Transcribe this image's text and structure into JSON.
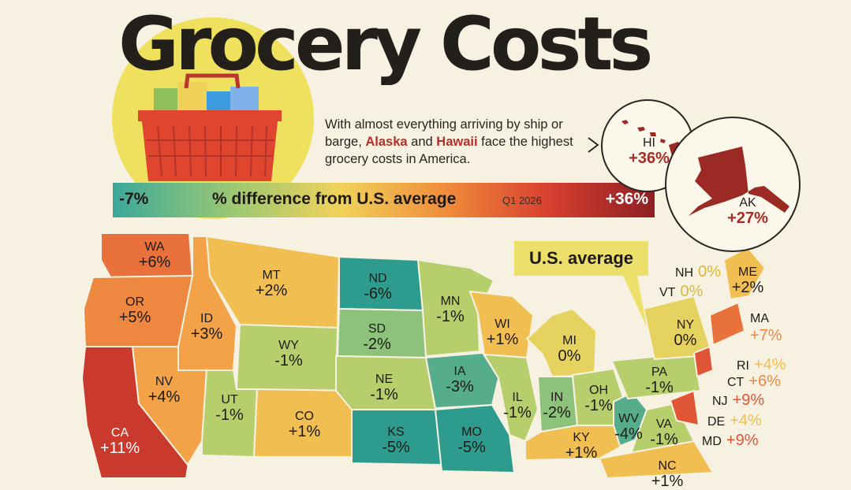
{
  "title": "Grocery Costs",
  "intro": {
    "text_before": "With almost everything arriving by ship or barge, ",
    "alaska": "Alaska",
    "and": " and ",
    "hawaii": "Hawaii",
    "text_after": " face the highest grocery costs in America."
  },
  "legend": {
    "min": "-7%",
    "label": "% difference from U.S. average",
    "sub": "Q1 2026",
    "max": "+36%"
  },
  "callout": "U.S. average",
  "colors": {
    "background": "#f6f1e1",
    "title": "#231f1a",
    "highlight": "#b2302a",
    "callout": "#ece06a",
    "scale": [
      "#2d9c8f",
      "#55ad8c",
      "#8cc27a",
      "#b6cf6c",
      "#e6d25e",
      "#f1be52",
      "#f3a247",
      "#ee8740",
      "#e9713b",
      "#df5535",
      "#c93a2c",
      "#a82d26"
    ]
  },
  "map": {
    "inset": [
      {
        "code": "HI",
        "value": "+36%"
      },
      {
        "code": "AK",
        "value": "+27%"
      }
    ],
    "states": [
      {
        "code": "WA",
        "value": "+6%",
        "pct": 6
      },
      {
        "code": "OR",
        "value": "+5%",
        "pct": 5
      },
      {
        "code": "CA",
        "value": "+11%",
        "pct": 11
      },
      {
        "code": "ID",
        "value": "+3%",
        "pct": 3
      },
      {
        "code": "NV",
        "value": "+4%",
        "pct": 4
      },
      {
        "code": "MT",
        "value": "+2%",
        "pct": 2
      },
      {
        "code": "WY",
        "value": "-1%",
        "pct": -1
      },
      {
        "code": "UT",
        "value": "-1%",
        "pct": -1
      },
      {
        "code": "CO",
        "value": "+1%",
        "pct": 1
      },
      {
        "code": "ND",
        "value": "-6%",
        "pct": -6
      },
      {
        "code": "SD",
        "value": "-2%",
        "pct": -2
      },
      {
        "code": "NE",
        "value": "-1%",
        "pct": -1
      },
      {
        "code": "KS",
        "value": "-5%",
        "pct": -5
      },
      {
        "code": "MN",
        "value": "-1%",
        "pct": -1
      },
      {
        "code": "IA",
        "value": "-3%",
        "pct": -3
      },
      {
        "code": "MO",
        "value": "-5%",
        "pct": -5
      },
      {
        "code": "WI",
        "value": "+1%",
        "pct": 1
      },
      {
        "code": "IL",
        "value": "-1%",
        "pct": -1
      },
      {
        "code": "MI",
        "value": "0%",
        "pct": 0
      },
      {
        "code": "IN",
        "value": "-2%",
        "pct": -2
      },
      {
        "code": "OH",
        "value": "-1%",
        "pct": -1
      },
      {
        "code": "KY",
        "value": "+1%",
        "pct": 1
      },
      {
        "code": "WV",
        "value": "-4%",
        "pct": -4
      },
      {
        "code": "PA",
        "value": "-1%",
        "pct": -1
      },
      {
        "code": "VA",
        "value": "-1%",
        "pct": -1
      },
      {
        "code": "NY",
        "value": "0%",
        "pct": 0
      },
      {
        "code": "ME",
        "value": "+2%",
        "pct": 2
      },
      {
        "code": "NC",
        "value": "+1%",
        "pct": 1
      }
    ],
    "side_labels": [
      {
        "code": "NH",
        "value": "0%"
      },
      {
        "code": "VT",
        "value": "0%"
      },
      {
        "code": "MA",
        "value": "+7%"
      },
      {
        "code": "RI",
        "value": "+4%"
      },
      {
        "code": "CT",
        "value": "+6%"
      },
      {
        "code": "NJ",
        "value": "+9%"
      },
      {
        "code": "DE",
        "value": "+4%"
      },
      {
        "code": "MD",
        "value": "+9%"
      }
    ]
  }
}
